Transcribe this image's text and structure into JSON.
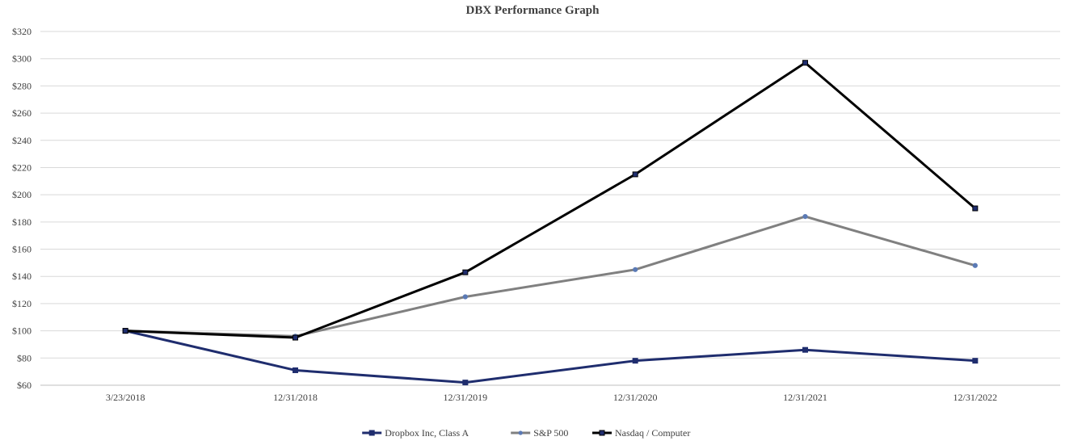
{
  "chart_data": {
    "type": "line",
    "title": "DBX Performance Graph",
    "xlabel": "",
    "ylabel": "",
    "categories": [
      "3/23/2018",
      "12/31/2018",
      "12/31/2019",
      "12/31/2020",
      "12/31/2021",
      "12/31/2022"
    ],
    "ylim": [
      60,
      320
    ],
    "yticks": [
      60,
      80,
      100,
      120,
      140,
      160,
      180,
      200,
      220,
      240,
      260,
      280,
      300,
      320
    ],
    "ytick_labels": [
      "$60",
      "$80",
      "$100",
      "$120",
      "$140",
      "$160",
      "$180",
      "$200",
      "$220",
      "$240",
      "$260",
      "$280",
      "$300",
      "$320"
    ],
    "grid": true,
    "legend_position": "bottom",
    "series": [
      {
        "name": "Dropbox Inc, Class A",
        "values": [
          100,
          71,
          62,
          78,
          86,
          78
        ],
        "color": "#1f2d6e",
        "marker": "square"
      },
      {
        "name": "S&P 500",
        "values": [
          100,
          96,
          125,
          145,
          184,
          148
        ],
        "color": "#808080",
        "marker": "circle"
      },
      {
        "name": "Nasdaq / Computer",
        "values": [
          100,
          95,
          143,
          215,
          297,
          190
        ],
        "color": "#000000",
        "marker": "square"
      }
    ]
  }
}
